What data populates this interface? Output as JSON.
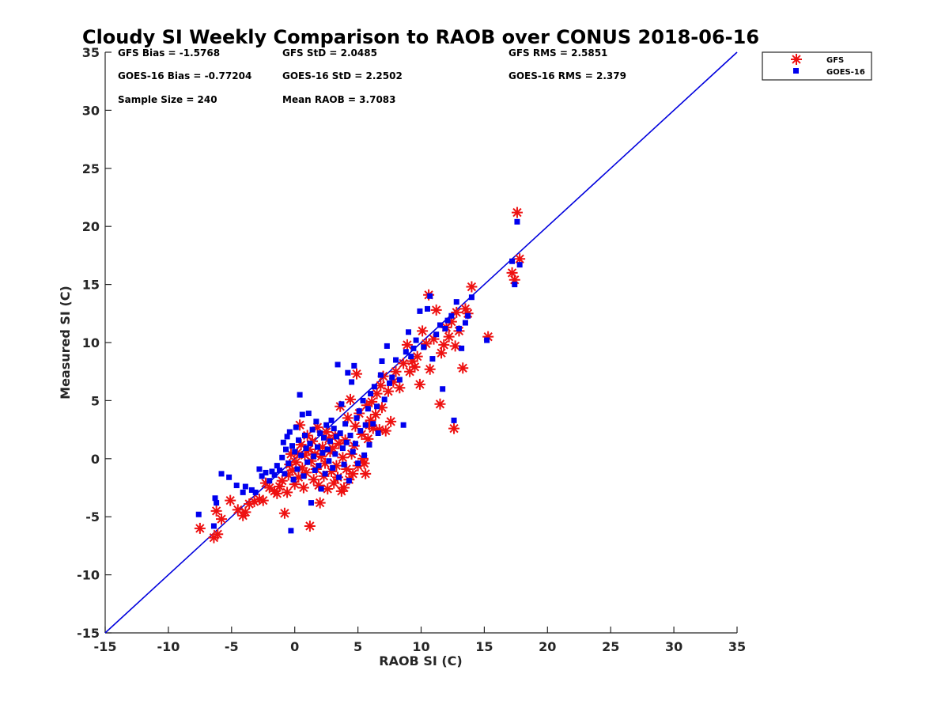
{
  "chart_data": {
    "type": "scatter",
    "title": "Cloudy SI Weekly Comparison to RAOB over CONUS 2018-06-16",
    "xlabel": "RAOB SI (C)",
    "ylabel": "Measured SI (C)",
    "xlim": [
      -15,
      35
    ],
    "ylim": [
      -15,
      35
    ],
    "xticks": [
      -15,
      -10,
      -5,
      0,
      5,
      10,
      15,
      20,
      25,
      30,
      35
    ],
    "yticks": [
      -15,
      -10,
      -5,
      0,
      5,
      10,
      15,
      20,
      25,
      30,
      35
    ],
    "grid": false,
    "legend_position": "top-right outside",
    "reference_line": {
      "x": [
        -15,
        35
      ],
      "y": [
        -15,
        35
      ],
      "color": "#0000dd"
    },
    "stats": [
      [
        "GFS Bias = -1.5768",
        "GFS StD = 2.0485",
        "GFS RMS = 2.5851"
      ],
      [
        "GOES-16 Bias = -0.77204",
        "GOES-16 StD = 2.2502",
        "GOES-16 RMS = 2.379"
      ],
      [
        "Sample Size = 240",
        "Mean RAOB = 3.7083"
      ]
    ],
    "series": [
      {
        "name": "GFS",
        "marker": "asterisk",
        "color": "#ee1111",
        "points": [
          [
            -7.5,
            -6.0
          ],
          [
            -6.4,
            -6.8
          ],
          [
            -6.1,
            -6.5
          ],
          [
            -6.2,
            -4.5
          ],
          [
            -5.8,
            -5.2
          ],
          [
            -5.1,
            -3.6
          ],
          [
            -4.5,
            -4.4
          ],
          [
            -4.1,
            -4.9
          ],
          [
            -3.9,
            -4.6
          ],
          [
            -3.6,
            -3.9
          ],
          [
            -3.2,
            -3.7
          ],
          [
            -2.8,
            -3.5
          ],
          [
            -2.5,
            -3.6
          ],
          [
            -2.3,
            -2.1
          ],
          [
            -2.0,
            -2.5
          ],
          [
            -1.6,
            -2.8
          ],
          [
            -1.4,
            -3.0
          ],
          [
            -1.2,
            -2.4
          ],
          [
            -1.0,
            -1.9
          ],
          [
            -0.8,
            -4.7
          ],
          [
            -0.6,
            -2.9
          ],
          [
            -0.5,
            -1.4
          ],
          [
            -0.4,
            -0.5
          ],
          [
            -0.3,
            0.4
          ],
          [
            -0.2,
            -1.0
          ],
          [
            0.0,
            -2.2
          ],
          [
            0.1,
            -0.3
          ],
          [
            0.2,
            0.5
          ],
          [
            0.3,
            -1.6
          ],
          [
            0.4,
            2.9
          ],
          [
            0.5,
            1.2
          ],
          [
            0.6,
            -0.8
          ],
          [
            0.7,
            -2.5
          ],
          [
            0.8,
            0.3
          ],
          [
            0.9,
            -1.2
          ],
          [
            1.0,
            2.0
          ],
          [
            1.1,
            0.8
          ],
          [
            1.2,
            -5.8
          ],
          [
            1.3,
            -0.2
          ],
          [
            1.4,
            1.5
          ],
          [
            1.5,
            -1.8
          ],
          [
            1.6,
            0.4
          ],
          [
            1.7,
            -0.9
          ],
          [
            1.8,
            2.7
          ],
          [
            1.9,
            -2.3
          ],
          [
            2.0,
            -3.8
          ],
          [
            2.1,
            0.2
          ],
          [
            2.2,
            1.0
          ],
          [
            2.3,
            -1.5
          ],
          [
            2.4,
            -0.4
          ],
          [
            2.5,
            2.3
          ],
          [
            2.6,
            -2.6
          ],
          [
            2.7,
            1.7
          ],
          [
            2.8,
            0.6
          ],
          [
            2.9,
            -1.1
          ],
          [
            3.0,
            0.9
          ],
          [
            3.1,
            -2.1
          ],
          [
            3.2,
            2.0
          ],
          [
            3.3,
            -0.6
          ],
          [
            3.4,
            -1.6
          ],
          [
            3.5,
            1.3
          ],
          [
            3.6,
            4.5
          ],
          [
            3.7,
            -2.8
          ],
          [
            3.8,
            0.1
          ],
          [
            3.9,
            -2.5
          ],
          [
            4.0,
            1.6
          ],
          [
            4.1,
            -0.9
          ],
          [
            4.2,
            3.5
          ],
          [
            4.3,
            -1.8
          ],
          [
            4.4,
            5.1
          ],
          [
            4.5,
            0.4
          ],
          [
            4.6,
            -1.3
          ],
          [
            4.7,
            1.1
          ],
          [
            4.8,
            2.8
          ],
          [
            4.9,
            7.3
          ],
          [
            5.0,
            -0.6
          ],
          [
            5.1,
            3.9
          ],
          [
            5.3,
            2.1
          ],
          [
            5.4,
            0.0
          ],
          [
            5.5,
            -0.4
          ],
          [
            5.6,
            -1.3
          ],
          [
            5.7,
            4.6
          ],
          [
            5.8,
            1.7
          ],
          [
            5.9,
            2.9
          ],
          [
            6.0,
            3.3
          ],
          [
            6.1,
            4.9
          ],
          [
            6.2,
            2.6
          ],
          [
            6.4,
            3.8
          ],
          [
            6.5,
            5.6
          ],
          [
            6.7,
            2.5
          ],
          [
            6.8,
            6.3
          ],
          [
            6.9,
            4.4
          ],
          [
            7.0,
            7.1
          ],
          [
            7.2,
            2.4
          ],
          [
            7.4,
            5.8
          ],
          [
            7.6,
            3.2
          ],
          [
            7.8,
            6.6
          ],
          [
            8.0,
            7.5
          ],
          [
            8.3,
            6.1
          ],
          [
            8.6,
            8.2
          ],
          [
            8.9,
            9.8
          ],
          [
            9.1,
            7.5
          ],
          [
            9.3,
            8.4
          ],
          [
            9.5,
            7.9
          ],
          [
            9.7,
            8.8
          ],
          [
            9.9,
            6.4
          ],
          [
            10.1,
            11.0
          ],
          [
            10.4,
            9.9
          ],
          [
            10.6,
            14.1
          ],
          [
            10.7,
            7.7
          ],
          [
            11.0,
            10.3
          ],
          [
            11.2,
            12.8
          ],
          [
            11.5,
            4.7
          ],
          [
            11.6,
            9.1
          ],
          [
            11.8,
            9.8
          ],
          [
            12.0,
            11.3
          ],
          [
            12.2,
            10.5
          ],
          [
            12.4,
            11.8
          ],
          [
            12.6,
            2.6
          ],
          [
            12.7,
            9.7
          ],
          [
            12.8,
            12.6
          ],
          [
            13.0,
            11.0
          ],
          [
            13.3,
            7.8
          ],
          [
            13.5,
            12.9
          ],
          [
            13.7,
            12.5
          ],
          [
            14.0,
            14.8
          ],
          [
            15.3,
            10.5
          ],
          [
            17.2,
            16.0
          ],
          [
            17.4,
            15.4
          ],
          [
            17.6,
            21.2
          ],
          [
            17.8,
            17.2
          ]
        ]
      },
      {
        "name": "GOES-16",
        "marker": "square",
        "color": "#0000ee",
        "points": [
          [
            -7.6,
            -4.8
          ],
          [
            -6.4,
            -5.8
          ],
          [
            -6.3,
            -3.4
          ],
          [
            -6.2,
            -3.8
          ],
          [
            -5.8,
            -1.3
          ],
          [
            -5.2,
            -1.6
          ],
          [
            -4.6,
            -2.3
          ],
          [
            -4.1,
            -2.9
          ],
          [
            -3.9,
            -2.4
          ],
          [
            -3.4,
            -2.7
          ],
          [
            -3.1,
            -2.9
          ],
          [
            -2.8,
            -0.9
          ],
          [
            -2.6,
            -1.5
          ],
          [
            -2.3,
            -1.2
          ],
          [
            -2.0,
            -1.9
          ],
          [
            -1.8,
            -1.1
          ],
          [
            -1.6,
            -1.4
          ],
          [
            -1.4,
            -0.6
          ],
          [
            -1.2,
            -1.0
          ],
          [
            -1.0,
            0.1
          ],
          [
            -0.9,
            1.4
          ],
          [
            -0.8,
            -1.3
          ],
          [
            -0.7,
            0.8
          ],
          [
            -0.6,
            1.9
          ],
          [
            -0.5,
            -0.4
          ],
          [
            -0.4,
            2.3
          ],
          [
            -0.3,
            -6.2
          ],
          [
            -0.2,
            1.1
          ],
          [
            -0.1,
            -1.8
          ],
          [
            0.0,
            0.6
          ],
          [
            0.1,
            2.7
          ],
          [
            0.2,
            -0.9
          ],
          [
            0.3,
            1.6
          ],
          [
            0.4,
            5.5
          ],
          [
            0.5,
            0.3
          ],
          [
            0.6,
            3.8
          ],
          [
            0.7,
            -1.5
          ],
          [
            0.8,
            2.0
          ],
          [
            0.9,
            0.9
          ],
          [
            1.0,
            -0.3
          ],
          [
            1.1,
            3.9
          ],
          [
            1.2,
            1.3
          ],
          [
            1.3,
            -3.8
          ],
          [
            1.4,
            2.5
          ],
          [
            1.5,
            0.2
          ],
          [
            1.6,
            -1.0
          ],
          [
            1.7,
            3.2
          ],
          [
            1.8,
            1.0
          ],
          [
            1.9,
            -0.6
          ],
          [
            2.0,
            2.2
          ],
          [
            2.1,
            -2.6
          ],
          [
            2.2,
            0.5
          ],
          [
            2.3,
            1.8
          ],
          [
            2.4,
            -1.3
          ],
          [
            2.5,
            2.9
          ],
          [
            2.6,
            0.8
          ],
          [
            2.7,
            -0.2
          ],
          [
            2.8,
            1.5
          ],
          [
            2.9,
            3.3
          ],
          [
            3.0,
            -0.8
          ],
          [
            3.1,
            2.6
          ],
          [
            3.2,
            0.4
          ],
          [
            3.3,
            1.9
          ],
          [
            3.4,
            8.1
          ],
          [
            3.5,
            -1.6
          ],
          [
            3.6,
            2.2
          ],
          [
            3.7,
            4.7
          ],
          [
            3.8,
            0.9
          ],
          [
            3.9,
            -0.5
          ],
          [
            4.0,
            3.0
          ],
          [
            4.1,
            1.4
          ],
          [
            4.2,
            7.4
          ],
          [
            4.3,
            -1.9
          ],
          [
            4.4,
            2.0
          ],
          [
            4.5,
            6.6
          ],
          [
            4.6,
            0.6
          ],
          [
            4.7,
            8.0
          ],
          [
            4.8,
            1.3
          ],
          [
            4.9,
            3.5
          ],
          [
            5.0,
            -0.4
          ],
          [
            5.1,
            4.1
          ],
          [
            5.2,
            2.4
          ],
          [
            5.4,
            5.0
          ],
          [
            5.5,
            0.3
          ],
          [
            5.6,
            2.9
          ],
          [
            5.8,
            4.3
          ],
          [
            5.9,
            1.2
          ],
          [
            6.0,
            5.6
          ],
          [
            6.2,
            3.0
          ],
          [
            6.3,
            6.2
          ],
          [
            6.5,
            4.5
          ],
          [
            6.6,
            2.2
          ],
          [
            6.8,
            7.2
          ],
          [
            6.9,
            8.4
          ],
          [
            7.1,
            5.1
          ],
          [
            7.3,
            9.7
          ],
          [
            7.5,
            6.5
          ],
          [
            7.7,
            7.0
          ],
          [
            8.0,
            8.5
          ],
          [
            8.3,
            6.8
          ],
          [
            8.6,
            2.9
          ],
          [
            8.8,
            9.2
          ],
          [
            9.0,
            10.9
          ],
          [
            9.2,
            8.8
          ],
          [
            9.4,
            9.5
          ],
          [
            9.6,
            10.2
          ],
          [
            9.9,
            12.7
          ],
          [
            10.2,
            9.6
          ],
          [
            10.5,
            12.9
          ],
          [
            10.7,
            14.0
          ],
          [
            10.9,
            8.6
          ],
          [
            11.2,
            10.7
          ],
          [
            11.5,
            11.5
          ],
          [
            11.7,
            6.0
          ],
          [
            11.9,
            11.2
          ],
          [
            12.1,
            11.9
          ],
          [
            12.4,
            12.3
          ],
          [
            12.6,
            3.3
          ],
          [
            12.8,
            13.5
          ],
          [
            13.0,
            11.2
          ],
          [
            13.2,
            9.5
          ],
          [
            13.5,
            11.7
          ],
          [
            13.7,
            12.3
          ],
          [
            14.0,
            13.9
          ],
          [
            15.2,
            10.2
          ],
          [
            17.2,
            17.0
          ],
          [
            17.4,
            15.0
          ],
          [
            17.6,
            20.4
          ],
          [
            17.8,
            16.7
          ]
        ]
      }
    ]
  }
}
